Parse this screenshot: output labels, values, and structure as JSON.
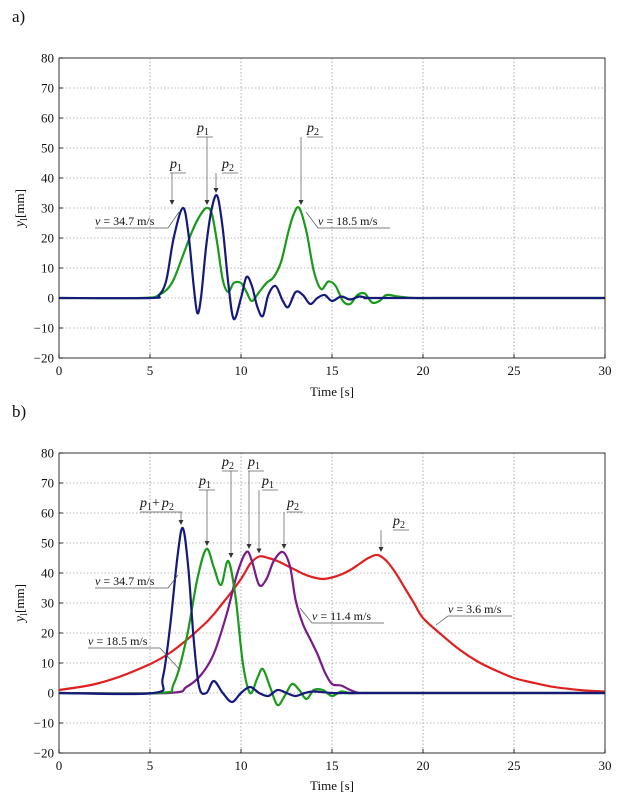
{
  "chart_data": [
    {
      "panel_label": "a)",
      "type": "line",
      "xlabel": "Time [s]",
      "ylabel_var": "y",
      "ylabel_sub": "l",
      "ylabel_unit": "[mm]",
      "xlim": [
        0,
        30
      ],
      "ylim": [
        -20,
        80
      ],
      "xticks": [
        0,
        5,
        10,
        15,
        20,
        25,
        30
      ],
      "yticks": [
        -20,
        -10,
        0,
        10,
        20,
        30,
        40,
        50,
        60,
        70,
        80
      ],
      "grid": true,
      "series": [
        {
          "color": "#1a9a1a",
          "x": [
            0,
            4.5,
            5.5,
            6.2,
            6.8,
            7.3,
            7.7,
            8.1,
            8.4,
            8.7,
            9.0,
            9.3,
            9.6,
            10.0,
            10.3,
            10.6,
            11.0,
            11.4,
            11.8,
            12.2,
            12.6,
            12.9,
            13.2,
            13.6,
            14.0,
            14.4,
            14.8,
            15.2,
            15.6,
            16.0,
            16.4,
            16.8,
            17.2,
            17.6,
            18.0,
            18.6,
            19.5,
            21.0,
            30
          ],
          "y": [
            0,
            0,
            1,
            5,
            14,
            22,
            27,
            30,
            28,
            18,
            6,
            2,
            5,
            5,
            2,
            -1,
            2,
            5,
            7,
            12,
            22,
            28,
            30,
            22,
            9,
            3,
            5.5,
            4,
            -1,
            -2,
            1,
            1.5,
            -1.5,
            -1,
            1,
            0.5,
            0,
            0,
            0
          ]
        },
        {
          "color": "#151a7a",
          "x": [
            0,
            5.0,
            5.5,
            5.9,
            6.3,
            6.8,
            7.1,
            7.4,
            7.6,
            7.8,
            8.1,
            8.4,
            8.7,
            9.0,
            9.3,
            9.6,
            10.0,
            10.3,
            10.6,
            10.9,
            11.2,
            11.5,
            11.9,
            12.3,
            12.6,
            13.0,
            13.4,
            13.8,
            14.2,
            14.6,
            15.0,
            15.5,
            16.0,
            16.5,
            17.0,
            18.0,
            30
          ],
          "y": [
            0,
            0,
            1,
            6,
            20,
            30,
            22,
            4,
            -5,
            0,
            18,
            30,
            34,
            23,
            5,
            -7,
            0,
            7,
            4,
            -3,
            -6,
            1,
            4,
            -1,
            -3,
            2,
            1,
            -2,
            0,
            1,
            -1,
            0.5,
            -0.5,
            0.5,
            0,
            0,
            0
          ]
        }
      ],
      "annotations": [
        {
          "text": "p",
          "sub": "1",
          "x": 6.8,
          "y": 30
        },
        {
          "text": "p",
          "sub": "1",
          "x": 8.1,
          "y": 30
        },
        {
          "text": "p",
          "sub": "2",
          "x": 8.7,
          "y": 34
        },
        {
          "text": "p",
          "sub": "2",
          "x": 13.2,
          "y": 30
        },
        {
          "text": "v = 34.7 m/s",
          "x": 6.8,
          "y": 25
        },
        {
          "text": "v = 18.5 m/s",
          "x": 13.2,
          "y": 25
        }
      ]
    },
    {
      "panel_label": "b)",
      "type": "line",
      "xlabel": "Time [s]",
      "ylabel_var": "y",
      "ylabel_sub": "l",
      "ylabel_unit": "[mm]",
      "xlim": [
        0,
        30
      ],
      "ylim": [
        -20,
        80
      ],
      "xticks": [
        0,
        5,
        10,
        15,
        20,
        25,
        30
      ],
      "yticks": [
        -20,
        -10,
        0,
        10,
        20,
        30,
        40,
        50,
        60,
        70,
        80
      ],
      "grid": true,
      "series": [
        {
          "color": "#e02020",
          "x": [
            0,
            2,
            4,
            6,
            8,
            9,
            10,
            10.5,
            11,
            11.5,
            12,
            12.5,
            13,
            13.5,
            14,
            14.5,
            15,
            15.5,
            16,
            16.5,
            17,
            17.5,
            18,
            18.5,
            19,
            19.5,
            20,
            21,
            22,
            23,
            24,
            25,
            26,
            27,
            28,
            29,
            30
          ],
          "y": [
            1,
            3,
            7,
            13,
            23,
            30,
            38,
            43,
            45.5,
            45,
            44,
            42.5,
            41,
            39.5,
            38.5,
            38,
            38.5,
            39.5,
            41,
            43,
            45,
            46,
            44,
            40,
            35,
            30,
            25,
            19.5,
            14.5,
            10.5,
            7.5,
            5,
            3.5,
            2.2,
            1.4,
            0.8,
            0.5
          ]
        },
        {
          "color": "#7a1a8a",
          "x": [
            0,
            6.0,
            7.0,
            7.8,
            8.5,
            9.2,
            9.8,
            10.3,
            10.6,
            11.0,
            11.4,
            11.8,
            12.3,
            12.7,
            13.0,
            13.4,
            13.8,
            14.2,
            14.6,
            15.0,
            15.5,
            16.0,
            16.5,
            17.0,
            30
          ],
          "y": [
            0,
            0,
            2,
            6,
            13,
            26,
            40,
            47,
            44,
            36,
            38,
            44,
            47,
            42,
            31,
            23,
            18,
            13,
            7,
            3,
            2.5,
            1,
            0,
            0,
            0
          ]
        },
        {
          "color": "#1a9a1a",
          "x": [
            0,
            5.5,
            6.3,
            7.0,
            7.6,
            8.1,
            8.5,
            8.9,
            9.3,
            9.7,
            10.1,
            10.5,
            10.9,
            11.2,
            11.6,
            12.0,
            12.4,
            12.8,
            13.2,
            13.6,
            14.0,
            14.5,
            15.0,
            15.5,
            16.0,
            17.0,
            30
          ],
          "y": [
            0,
            0,
            3,
            18,
            38,
            48,
            42,
            36,
            44,
            32,
            10,
            0,
            5,
            8,
            2,
            -4,
            -1,
            3,
            1,
            -2,
            1,
            1,
            -1,
            0.5,
            0,
            0,
            0
          ]
        },
        {
          "color": "#151a7a",
          "x": [
            0,
            5.2,
            5.7,
            6.1,
            6.5,
            6.8,
            7.1,
            7.4,
            7.7,
            8.1,
            8.5,
            9.0,
            9.5,
            10.0,
            10.5,
            11.0,
            11.5,
            12.0,
            12.5,
            13.0,
            13.5,
            14.0,
            15.0,
            16.0,
            17.0,
            30
          ],
          "y": [
            0,
            0,
            5,
            22,
            45,
            55,
            42,
            18,
            2,
            0,
            4,
            0,
            -3,
            0,
            2,
            0,
            -1,
            1,
            0,
            -1,
            0,
            0.5,
            0,
            0,
            0,
            0
          ]
        }
      ],
      "annotations": [
        {
          "text": "p",
          "sub": "1",
          "text2": "+ p",
          "sub2": "2",
          "x": 6.8,
          "y": 55
        },
        {
          "text": "p",
          "sub": "1",
          "x": 8.1,
          "y": 48
        },
        {
          "text": "p",
          "sub": "2",
          "x": 9.3,
          "y": 44
        },
        {
          "text": "p",
          "sub": "1",
          "x": 10.3,
          "y": 47
        },
        {
          "text": "p",
          "sub": "1",
          "x": 11.0,
          "y": 45.5
        },
        {
          "text": "p",
          "sub": "2",
          "x": 12.3,
          "y": 47
        },
        {
          "text": "p",
          "sub": "2",
          "x": 17.5,
          "y": 46
        },
        {
          "text": "v = 34.7 m/s",
          "x": 6.8,
          "y": 45
        },
        {
          "text": "v = 18.5 m/s",
          "x": 7.5,
          "y": 12
        },
        {
          "text": "v = 11.4 m/s",
          "x": 14.0,
          "y": 17
        },
        {
          "text": "v = 3.6 m/s",
          "x": 19.5,
          "y": 30
        }
      ]
    }
  ]
}
